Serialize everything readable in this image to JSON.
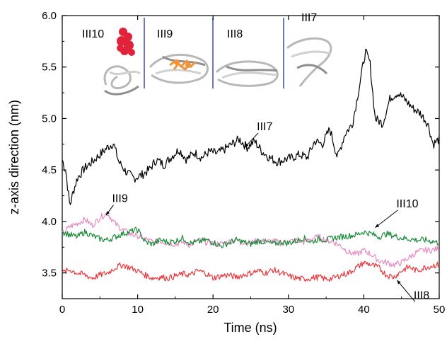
{
  "chart_data": {
    "type": "line",
    "xlabel": "Time (ns)",
    "ylabel": "z-axis direction (nm)",
    "xlim": [
      0,
      50
    ],
    "ylim": [
      3.25,
      6.0
    ],
    "xticks": [
      0,
      10,
      20,
      30,
      40,
      50
    ],
    "yticks": [
      3.5,
      4.0,
      4.5,
      5.0,
      5.5,
      6.0
    ],
    "xtick_labels": [
      "0",
      "10",
      "20",
      "30",
      "40",
      "50"
    ],
    "ytick_labels": [
      "3.5",
      "4.0",
      "4.5",
      "5.0",
      "5.5",
      "6.0"
    ],
    "grid": false,
    "series": [
      {
        "name": "III7",
        "color": "#000000",
        "x": [
          0,
          0.5,
          1,
          1.5,
          2,
          3,
          4,
          5,
          6,
          6.8,
          7.5,
          8.5,
          9.5,
          10.5,
          11.5,
          12.5,
          13.5,
          14.5,
          15.5,
          16.5,
          17.5,
          18.5,
          19.5,
          20.5,
          21.5,
          22.5,
          23.5,
          24.5,
          25.5,
          26.5,
          27.5,
          28.5,
          29.5,
          30.5,
          31.5,
          32.5,
          33.5,
          34.5,
          35.5,
          36.5,
          37.5,
          38.5,
          39.5,
          40.2,
          40.8,
          41.5,
          42.5,
          43.5,
          44.5,
          45.5,
          46.5,
          47.5,
          48.5,
          49.2,
          50
        ],
        "values": [
          4.6,
          4.48,
          4.15,
          4.3,
          4.42,
          4.52,
          4.58,
          4.65,
          4.72,
          4.76,
          4.58,
          4.48,
          4.42,
          4.45,
          4.5,
          4.6,
          4.55,
          4.63,
          4.7,
          4.6,
          4.67,
          4.62,
          4.68,
          4.66,
          4.7,
          4.75,
          4.8,
          4.72,
          4.78,
          4.68,
          4.62,
          4.58,
          4.6,
          4.62,
          4.65,
          4.62,
          4.78,
          4.75,
          4.9,
          4.62,
          4.85,
          4.95,
          5.35,
          5.65,
          5.55,
          5.0,
          4.95,
          5.2,
          5.25,
          5.18,
          5.1,
          5.05,
          4.95,
          4.75,
          4.8
        ]
      },
      {
        "name": "III9",
        "color": "#e78ac3",
        "x": [
          0,
          1,
          2,
          3,
          4,
          5,
          6,
          7,
          8,
          9,
          10,
          11,
          12,
          13,
          14,
          15,
          16,
          17,
          18,
          19,
          20,
          21,
          22,
          23,
          24,
          25,
          26,
          27,
          28,
          29,
          30,
          31,
          32,
          33,
          34,
          35,
          36,
          37,
          38,
          39,
          40,
          41,
          42,
          43,
          44,
          45,
          46,
          47,
          48,
          49,
          50
        ],
        "values": [
          3.88,
          3.95,
          3.98,
          4.02,
          3.96,
          4.04,
          4.08,
          3.98,
          3.92,
          3.88,
          3.86,
          3.83,
          3.8,
          3.81,
          3.79,
          3.78,
          3.8,
          3.77,
          3.82,
          3.8,
          3.79,
          3.78,
          3.8,
          3.82,
          3.8,
          3.79,
          3.82,
          3.8,
          3.81,
          3.79,
          3.8,
          3.82,
          3.8,
          3.83,
          3.85,
          3.82,
          3.8,
          3.76,
          3.7,
          3.68,
          3.72,
          3.68,
          3.62,
          3.6,
          3.58,
          3.6,
          3.65,
          3.7,
          3.72,
          3.72,
          3.74
        ]
      },
      {
        "name": "III10",
        "color": "#1a8c3a",
        "x": [
          0,
          1,
          2,
          3,
          4,
          5,
          6,
          7,
          8,
          9,
          10,
          11,
          12,
          13,
          14,
          15,
          16,
          17,
          18,
          19,
          20,
          21,
          22,
          23,
          24,
          25,
          26,
          27,
          28,
          29,
          30,
          31,
          32,
          33,
          34,
          35,
          36,
          37,
          38,
          39,
          40,
          41,
          42,
          43,
          44,
          45,
          46,
          47,
          48,
          49,
          50
        ],
        "values": [
          3.9,
          3.87,
          3.85,
          3.9,
          3.86,
          3.83,
          3.82,
          3.85,
          3.88,
          3.9,
          3.92,
          3.8,
          3.78,
          3.82,
          3.8,
          3.81,
          3.84,
          3.79,
          3.8,
          3.82,
          3.8,
          3.76,
          3.79,
          3.82,
          3.8,
          3.78,
          3.81,
          3.8,
          3.78,
          3.8,
          3.79,
          3.81,
          3.84,
          3.8,
          3.83,
          3.82,
          3.84,
          3.85,
          3.86,
          3.87,
          3.9,
          3.88,
          3.85,
          3.88,
          3.86,
          3.84,
          3.83,
          3.82,
          3.82,
          3.81,
          3.79
        ]
      },
      {
        "name": "III8",
        "color": "#e8383d",
        "x": [
          0,
          1,
          2,
          3,
          4,
          5,
          6,
          7,
          8,
          9,
          10,
          11,
          12,
          13,
          14,
          15,
          16,
          17,
          18,
          19,
          20,
          21,
          22,
          23,
          24,
          25,
          26,
          27,
          28,
          29,
          30,
          31,
          32,
          33,
          34,
          35,
          36,
          37,
          38,
          39,
          40,
          41,
          42,
          43,
          44,
          45,
          46,
          47,
          48,
          49,
          50
        ],
        "values": [
          3.5,
          3.53,
          3.5,
          3.48,
          3.45,
          3.48,
          3.5,
          3.55,
          3.58,
          3.55,
          3.52,
          3.48,
          3.45,
          3.46,
          3.45,
          3.47,
          3.49,
          3.48,
          3.52,
          3.5,
          3.45,
          3.47,
          3.48,
          3.46,
          3.48,
          3.5,
          3.52,
          3.5,
          3.53,
          3.5,
          3.47,
          3.45,
          3.44,
          3.45,
          3.46,
          3.44,
          3.45,
          3.48,
          3.5,
          3.55,
          3.6,
          3.58,
          3.55,
          3.48,
          3.46,
          3.52,
          3.56,
          3.52,
          3.55,
          3.57,
          3.58
        ]
      }
    ],
    "series_labels": [
      {
        "text": "III7",
        "at": [
          26,
          4.88
        ],
        "arrow_to": [
          24.2,
          4.72
        ]
      },
      {
        "text": "III9",
        "at": [
          6.8,
          4.18
        ],
        "arrow_to": [
          5.8,
          4.06
        ]
      },
      {
        "text": "III10",
        "at": [
          44.5,
          4.13
        ],
        "arrow_to": [
          41.5,
          3.94
        ]
      },
      {
        "text": "III8",
        "at": [
          46.8,
          3.24
        ],
        "arrow_to": [
          44.4,
          3.43
        ]
      }
    ],
    "inset": {
      "labels": [
        "III10",
        "III9",
        "III8",
        "III7"
      ],
      "divider_color": "#3a4aa8",
      "highlight_colors": {
        "sphere": "#e0233a",
        "ligand": "#f0943a",
        "ribbon": "#d9d9d9"
      }
    }
  }
}
